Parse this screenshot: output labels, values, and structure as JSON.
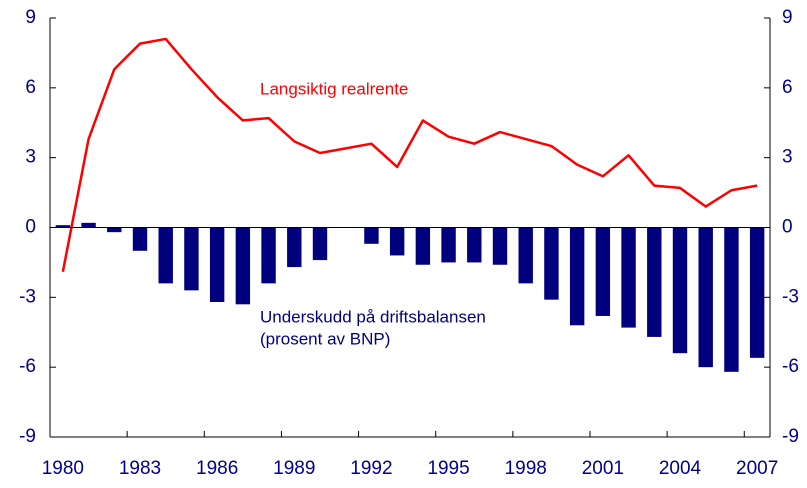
{
  "chart_data": {
    "type": "combo",
    "x": [
      1980,
      1981,
      1982,
      1983,
      1984,
      1985,
      1986,
      1987,
      1988,
      1989,
      1990,
      1991,
      1992,
      1993,
      1994,
      1995,
      1996,
      1997,
      1998,
      1999,
      2000,
      2001,
      2002,
      2003,
      2004,
      2005,
      2006,
      2007
    ],
    "xlim": [
      1979.5,
      2007.5
    ],
    "xticks": [
      1980,
      1983,
      1986,
      1989,
      1992,
      1995,
      1998,
      2001,
      2004,
      2007
    ],
    "ylim": [
      -9,
      9
    ],
    "yticks": [
      9,
      6,
      3,
      0,
      -3,
      -6,
      -9
    ],
    "y2lim": [
      -9,
      9
    ],
    "y2ticks": [
      9,
      6,
      3,
      0,
      -3,
      -6,
      -9
    ],
    "series": [
      {
        "name": "Underskudd på driftsbalansen (prosent av BNP)",
        "type": "bar",
        "color": "#00007f",
        "values": [
          0.1,
          0.2,
          -0.2,
          -1.0,
          -2.4,
          -2.7,
          -3.2,
          -3.3,
          -2.4,
          -1.7,
          -1.4,
          0,
          -0.7,
          -1.2,
          -1.6,
          -1.5,
          -1.5,
          -1.6,
          -2.4,
          -3.1,
          -4.2,
          -3.8,
          -4.3,
          -4.7,
          -5.4,
          -6.0,
          -6.2,
          -5.6
        ]
      },
      {
        "name": "Langsiktig realrente",
        "type": "line",
        "color": "#ff0000",
        "values": [
          -1.9,
          3.8,
          6.8,
          7.9,
          8.1,
          6.8,
          5.6,
          4.6,
          4.7,
          3.7,
          3.2,
          3.4,
          3.6,
          2.6,
          4.6,
          3.9,
          3.6,
          4.1,
          3.8,
          3.5,
          2.7,
          2.2,
          3.1,
          1.8,
          1.7,
          0.9,
          1.6,
          1.8
        ]
      }
    ],
    "annotations": [
      {
        "lines": [
          "Langsiktig realrente"
        ],
        "color": "#ff0000"
      },
      {
        "lines": [
          "Underskudd på driftsbalansen",
          "(prosent av BNP)"
        ],
        "color": "#00007f"
      }
    ]
  }
}
